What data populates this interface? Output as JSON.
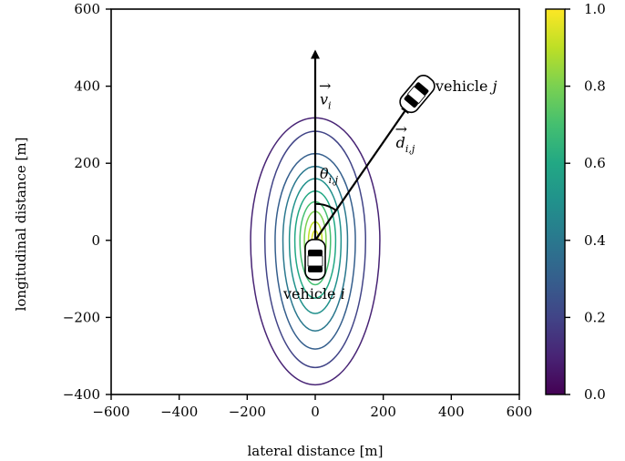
{
  "chart_data": {
    "type": "contour",
    "xlabel": "lateral distance [m]",
    "ylabel": "longitudinal distance [m]",
    "xlim": [
      -600,
      600
    ],
    "ylim": [
      -400,
      600
    ],
    "xticks": [
      "−600",
      "−400",
      "−200",
      "0",
      "200",
      "400",
      "600"
    ],
    "xtick_values": [
      -600,
      -400,
      -200,
      0,
      200,
      400,
      600
    ],
    "yticks": [
      "−400",
      "−200",
      "0",
      "200",
      "400",
      "600"
    ],
    "ytick_values": [
      -400,
      -200,
      0,
      200,
      400,
      600
    ],
    "colorbar": {
      "min": 0.0,
      "max": 1.0,
      "ticks": [
        "0.0",
        "0.2",
        "0.4",
        "0.6",
        "0.8",
        "1.0"
      ],
      "tick_values": [
        0.0,
        0.2,
        0.4,
        0.6,
        0.8,
        1.0
      ],
      "colormap": "viridis",
      "colors": [
        "#440154",
        "#482475",
        "#414487",
        "#355f8d",
        "#2a788e",
        "#21918c",
        "#22a884",
        "#44bf70",
        "#7ad151",
        "#bddf26",
        "#fde725"
      ]
    },
    "contour_levels": [
      {
        "level": 0.1,
        "rx": 190,
        "ry_up": 318,
        "ry_down": 375
      },
      {
        "level": 0.2,
        "rx": 148,
        "ry_up": 283,
        "ry_down": 330
      },
      {
        "level": 0.3,
        "rx": 118,
        "ry_up": 225,
        "ry_down": 282
      },
      {
        "level": 0.4,
        "rx": 95,
        "ry_up": 192,
        "ry_down": 235
      },
      {
        "level": 0.5,
        "rx": 76,
        "ry_up": 160,
        "ry_down": 190
      },
      {
        "level": 0.6,
        "rx": 60,
        "ry_up": 128,
        "ry_down": 150
      },
      {
        "level": 0.7,
        "rx": 45,
        "ry_up": 100,
        "ry_down": 115
      },
      {
        "level": 0.8,
        "rx": 32,
        "ry_up": 75,
        "ry_down": 85
      },
      {
        "level": 0.9,
        "rx": 20,
        "ry_up": 48,
        "ry_down": 55
      },
      {
        "level": 0.95,
        "rx": 10,
        "ry_up": 25,
        "ry_down": 28
      }
    ],
    "vehicle_i": {
      "label": "vehicle",
      "label_math": "i",
      "x": 0,
      "y": -50
    },
    "vehicle_j": {
      "label": "vehicle",
      "label_math": "j",
      "x": 300,
      "y": 380
    },
    "velocity_vector": {
      "name": "v",
      "sub": "i",
      "from": [
        0,
        0
      ],
      "to": [
        0,
        490
      ]
    },
    "distance_vector": {
      "name": "d",
      "sub": "i,j",
      "from": [
        0,
        0
      ],
      "to": [
        275,
        350
      ]
    },
    "angle_label": {
      "name": "θ",
      "sub": "i,j"
    }
  }
}
